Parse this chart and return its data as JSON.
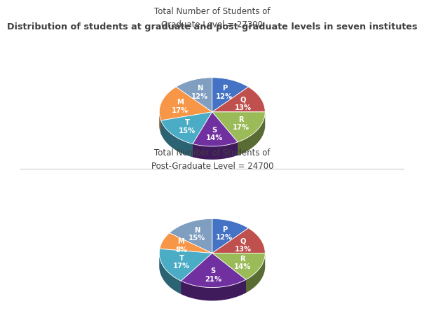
{
  "title": "Distribution of students at graduate and post-graduate levels in seven institutes",
  "chart1_title": "Total Number of Students of\nGraduate Level = 27300",
  "chart2_title": "Total Number of Students of\nPost-Graduate Level = 24700",
  "chart1_labels": [
    "P",
    "Q",
    "R",
    "S",
    "T",
    "M",
    "N"
  ],
  "chart1_values": [
    12,
    13,
    17,
    14,
    15,
    17,
    12
  ],
  "chart1_colors": [
    "#4472C4",
    "#C0504D",
    "#9BBB59",
    "#7030A0",
    "#4BACC6",
    "#F79646",
    "#7F9EC0"
  ],
  "chart2_labels": [
    "P",
    "Q",
    "R",
    "S",
    "T",
    "M",
    "N"
  ],
  "chart2_values": [
    12,
    13,
    14,
    21,
    17,
    8,
    15
  ],
  "chart2_colors": [
    "#4472C4",
    "#C0504D",
    "#9BBB59",
    "#7030A0",
    "#4BACC6",
    "#F79646",
    "#7F9EC0"
  ],
  "bg_color": "#FFFFFF",
  "title_color": "#404040",
  "separator_color": "#CCCCCC"
}
